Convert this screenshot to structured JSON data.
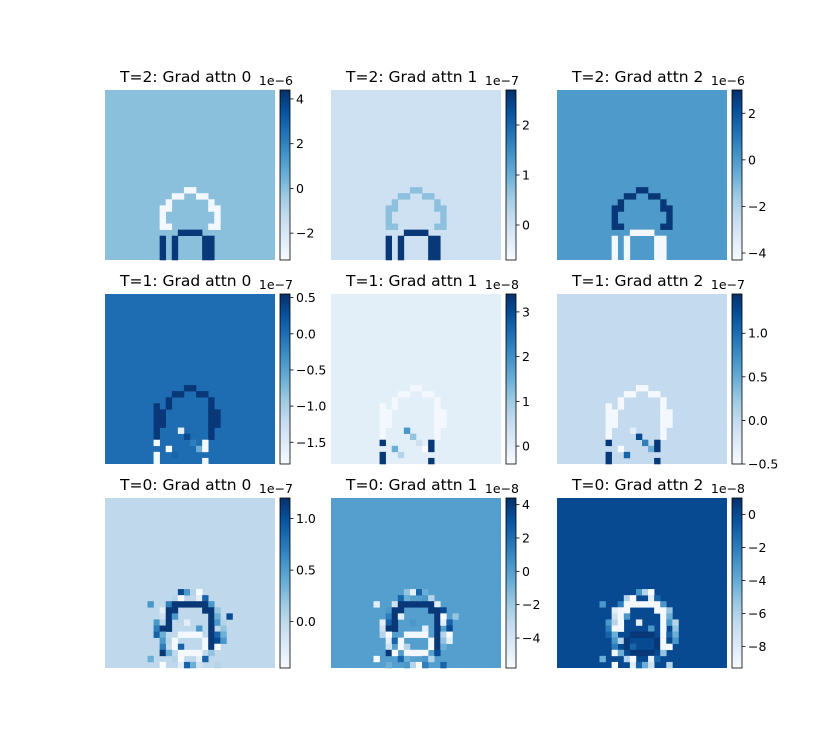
{
  "colormap": "Blues",
  "colors": {
    "blues_light": "#f7fbff",
    "blues_dark": "#08306b",
    "frame": "#000000"
  },
  "chart_data": [
    {
      "type": "heatmap",
      "title": "T=2: Grad attn 0",
      "exponent": "1e−6",
      "ticks": [
        {
          "label": "4",
          "value": 4
        },
        {
          "label": "2",
          "value": 2
        },
        {
          "label": "0",
          "value": 0
        },
        {
          "label": "−2",
          "value": -2
        }
      ],
      "vmin": -3.2,
      "vmax": 4.4,
      "background": 0,
      "mask": "A",
      "outline_style": "light",
      "inner_style": "dark"
    },
    {
      "type": "heatmap",
      "title": "T=2: Grad attn 1",
      "exponent": "1e−7",
      "ticks": [
        {
          "label": "2",
          "value": 2
        },
        {
          "label": "1",
          "value": 1
        },
        {
          "label": "0",
          "value": 0
        }
      ],
      "vmin": -0.7,
      "vmax": 2.7,
      "background": 0,
      "mask": "A",
      "outline_style": "mid",
      "inner_style": "dark"
    },
    {
      "type": "heatmap",
      "title": "T=2: Grad attn 2",
      "exponent": "1e−6",
      "ticks": [
        {
          "label": "2",
          "value": 2
        },
        {
          "label": "0",
          "value": 0
        },
        {
          "label": "−2",
          "value": -2
        },
        {
          "label": "−4",
          "value": -4
        }
      ],
      "vmin": -4.3,
      "vmax": 3.0,
      "background": 0,
      "mask": "A",
      "outline_style": "dark",
      "inner_style": "light"
    },
    {
      "type": "heatmap",
      "title": "T=1: Grad attn 0",
      "exponent": "1e−7",
      "ticks": [
        {
          "label": "0.5",
          "value": 0.5
        },
        {
          "label": "0.0",
          "value": 0.0
        },
        {
          "label": "−0.5",
          "value": -0.5
        },
        {
          "label": "−1.0",
          "value": -1.0
        },
        {
          "label": "−1.5",
          "value": -1.5
        }
      ],
      "vmin": -1.8,
      "vmax": 0.55,
      "background": 0,
      "mask": "B",
      "outline_style": "dark",
      "inner_style": "light"
    },
    {
      "type": "heatmap",
      "title": "T=1: Grad attn 1",
      "exponent": "1e−8",
      "ticks": [
        {
          "label": "3",
          "value": 3
        },
        {
          "label": "2",
          "value": 2
        },
        {
          "label": "1",
          "value": 1
        },
        {
          "label": "0",
          "value": 0
        }
      ],
      "vmin": -0.4,
      "vmax": 3.4,
      "background": 0,
      "mask": "B",
      "outline_style": "light",
      "inner_style": "dark"
    },
    {
      "type": "heatmap",
      "title": "T=1: Grad attn 2",
      "exponent": "1e−7",
      "ticks": [
        {
          "label": "1.0",
          "value": 1.0
        },
        {
          "label": "0.5",
          "value": 0.5
        },
        {
          "label": "0.0",
          "value": 0.0
        },
        {
          "label": "−0.5",
          "value": -0.5
        }
      ],
      "vmin": -0.5,
      "vmax": 1.45,
      "background": 0,
      "mask": "B",
      "outline_style": "light",
      "inner_style": "dark"
    },
    {
      "type": "heatmap",
      "title": "T=0: Grad attn 0",
      "exponent": "1e−7",
      "ticks": [
        {
          "label": "1.0",
          "value": 1.0
        },
        {
          "label": "0.5",
          "value": 0.5
        },
        {
          "label": "0.0",
          "value": 0.0
        }
      ],
      "vmin": -0.45,
      "vmax": 1.2,
      "background": 0,
      "mask": "C",
      "outline_style": "dark",
      "inner_style": "light"
    },
    {
      "type": "heatmap",
      "title": "T=0: Grad attn 1",
      "exponent": "1e−8",
      "ticks": [
        {
          "label": "4",
          "value": 4
        },
        {
          "label": "2",
          "value": 2
        },
        {
          "label": "0",
          "value": 0
        },
        {
          "label": "−2",
          "value": -2
        },
        {
          "label": "−4",
          "value": -4
        }
      ],
      "vmin": -5.8,
      "vmax": 4.4,
      "background": 0,
      "mask": "C",
      "outline_style": "dark",
      "inner_style": "light"
    },
    {
      "type": "heatmap",
      "title": "T=0: Grad attn 2",
      "exponent": "1e−8",
      "ticks": [
        {
          "label": "0",
          "value": 0
        },
        {
          "label": "−2",
          "value": -2
        },
        {
          "label": "−4",
          "value": -4
        },
        {
          "label": "−6",
          "value": -6
        },
        {
          "label": "−8",
          "value": -8
        }
      ],
      "vmin": -9.3,
      "vmax": 1.0,
      "background": 0,
      "mask": "C",
      "outline_style": "light",
      "inner_style": "dark"
    }
  ]
}
